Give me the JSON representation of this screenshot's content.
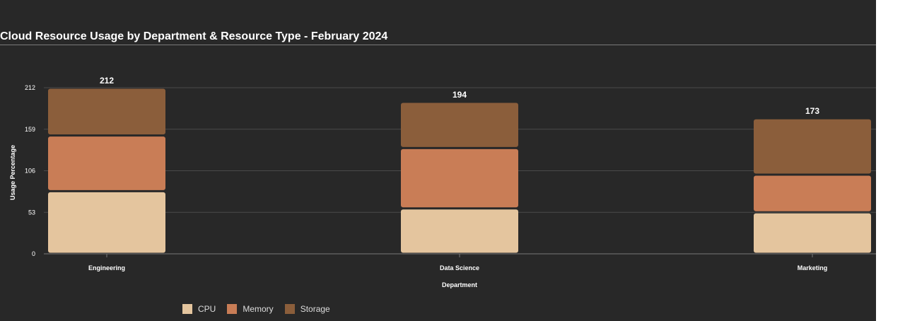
{
  "chart_data": {
    "type": "bar",
    "stacked": true,
    "title": "Cloud Resource Usage by Department & Resource Type - February 2024",
    "xlabel": "Department",
    "ylabel": "Usage Percentage",
    "categories": [
      "Engineering",
      "Data Science",
      "Marketing"
    ],
    "series": [
      {
        "name": "CPU",
        "color": "#e4c59e",
        "values": [
          80,
          58,
          53
        ]
      },
      {
        "name": "Memory",
        "color": "#c97d56",
        "values": [
          71,
          77,
          48
        ]
      },
      {
        "name": "Storage",
        "color": "#8b5e3b",
        "values": [
          61,
          59,
          72
        ]
      }
    ],
    "totals": [
      "212",
      "194",
      "173"
    ],
    "y_ticks": [
      "0",
      "53",
      "106",
      "159",
      "212"
    ],
    "ylim": [
      0,
      212
    ],
    "grid": true,
    "legend_position": "bottom-left"
  }
}
